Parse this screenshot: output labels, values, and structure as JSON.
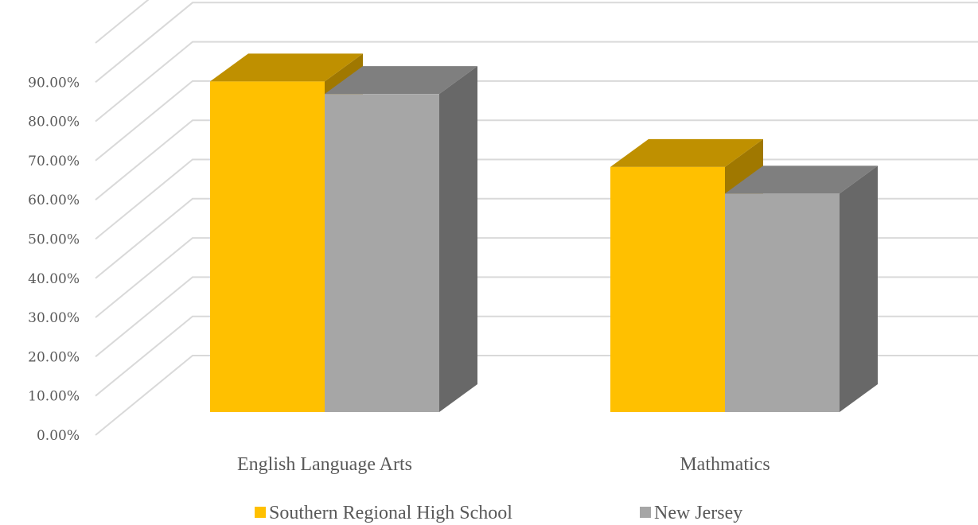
{
  "chart_data": {
    "type": "bar",
    "style": "3d-clustered-column",
    "categories": [
      "English Language Arts",
      "Mathmatics"
    ],
    "series": [
      {
        "name": "Southern Regional High School",
        "values": [
          0.843,
          0.625
        ],
        "colors": {
          "front": "#ffc000",
          "top": "#bf9000",
          "side": "#a07800"
        }
      },
      {
        "name": "New Jersey",
        "values": [
          0.811,
          0.557
        ],
        "colors": {
          "front": "#a6a6a6",
          "top": "#7f7f7f",
          "side": "#686868"
        }
      }
    ],
    "y_ticks": [
      "0.00%",
      "10.00%",
      "20.00%",
      "30.00%",
      "40.00%",
      "50.00%",
      "60.00%",
      "70.00%",
      "80.00%",
      "90.00%"
    ],
    "ylim": [
      0,
      1.0
    ],
    "grid": true,
    "legend_position": "bottom",
    "colors": {
      "grid": "#d9d9d9",
      "text": "#595959"
    }
  }
}
